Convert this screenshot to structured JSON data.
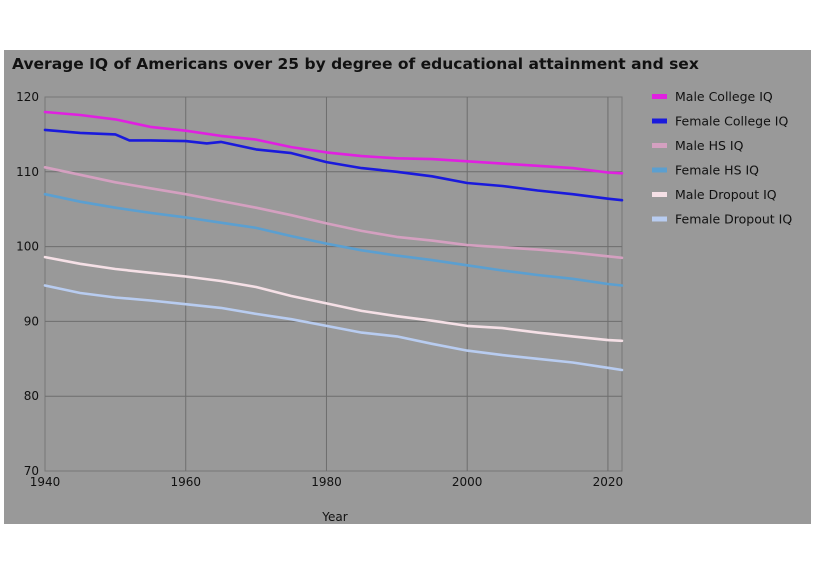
{
  "chart_data": {
    "type": "line",
    "title": "Average IQ of Americans over 25 by degree of educational attainment and sex",
    "xlabel": "Year",
    "ylabel": "",
    "xlim": [
      1940,
      2022
    ],
    "ylim": [
      70,
      120
    ],
    "xticks": [
      1940,
      1960,
      1980,
      2000,
      2020
    ],
    "yticks": [
      70,
      80,
      90,
      100,
      110,
      120
    ],
    "grid": true,
    "legend_position": "right",
    "series": [
      {
        "name": "Male College IQ",
        "color": "#e020e0",
        "x": [
          1940,
          1945,
          1950,
          1955,
          1960,
          1965,
          1970,
          1975,
          1980,
          1985,
          1990,
          1995,
          2000,
          2005,
          2010,
          2015,
          2020,
          2022
        ],
        "y": [
          118.0,
          117.6,
          117.0,
          116.0,
          115.5,
          114.8,
          114.3,
          113.3,
          112.6,
          112.1,
          111.8,
          111.7,
          111.4,
          111.1,
          110.8,
          110.5,
          109.9,
          109.8
        ]
      },
      {
        "name": "Female College IQ",
        "color": "#1a1adc",
        "x": [
          1940,
          1945,
          1950,
          1952,
          1955,
          1960,
          1963,
          1965,
          1970,
          1975,
          1980,
          1985,
          1990,
          1995,
          2000,
          2005,
          2010,
          2015,
          2020,
          2022
        ],
        "y": [
          115.6,
          115.2,
          115.0,
          114.2,
          114.2,
          114.1,
          113.8,
          114.0,
          113.0,
          112.5,
          111.3,
          110.5,
          110.0,
          109.4,
          108.5,
          108.1,
          107.5,
          107.0,
          106.4,
          106.2
        ]
      },
      {
        "name": "Male HS IQ",
        "color": "#d4a0c0",
        "x": [
          1940,
          1945,
          1950,
          1955,
          1960,
          1965,
          1970,
          1975,
          1980,
          1985,
          1990,
          1995,
          2000,
          2005,
          2010,
          2015,
          2020,
          2022
        ],
        "y": [
          110.6,
          109.6,
          108.6,
          107.8,
          107.0,
          106.1,
          105.2,
          104.2,
          103.1,
          102.1,
          101.3,
          100.8,
          100.2,
          99.9,
          99.6,
          99.2,
          98.7,
          98.5
        ]
      },
      {
        "name": "Female HS IQ",
        "color": "#5b9fd0",
        "x": [
          1940,
          1945,
          1950,
          1955,
          1960,
          1965,
          1970,
          1975,
          1980,
          1985,
          1990,
          1995,
          2000,
          2005,
          2010,
          2015,
          2020,
          2022
        ],
        "y": [
          107.0,
          106.0,
          105.2,
          104.5,
          103.9,
          103.2,
          102.5,
          101.4,
          100.4,
          99.5,
          98.8,
          98.2,
          97.5,
          96.8,
          96.2,
          95.7,
          95.0,
          94.8
        ]
      },
      {
        "name": "Male Dropout IQ",
        "color": "#f5e0e6",
        "x": [
          1940,
          1945,
          1950,
          1955,
          1960,
          1965,
          1970,
          1975,
          1980,
          1985,
          1990,
          1995,
          2000,
          2005,
          2010,
          2015,
          2020,
          2022
        ],
        "y": [
          98.6,
          97.7,
          97.0,
          96.5,
          96.0,
          95.4,
          94.6,
          93.4,
          92.4,
          91.4,
          90.7,
          90.1,
          89.4,
          89.1,
          88.5,
          88.0,
          87.5,
          87.4
        ]
      },
      {
        "name": "Female Dropout IQ",
        "color": "#b8ccf0",
        "x": [
          1940,
          1945,
          1950,
          1955,
          1960,
          1965,
          1970,
          1975,
          1980,
          1985,
          1990,
          1995,
          2000,
          2005,
          2010,
          2015,
          2020,
          2022
        ],
        "y": [
          94.8,
          93.8,
          93.2,
          92.8,
          92.3,
          91.8,
          91.0,
          90.3,
          89.4,
          88.5,
          88.0,
          87.0,
          86.1,
          85.5,
          85.0,
          84.5,
          83.8,
          83.5
        ]
      }
    ]
  }
}
